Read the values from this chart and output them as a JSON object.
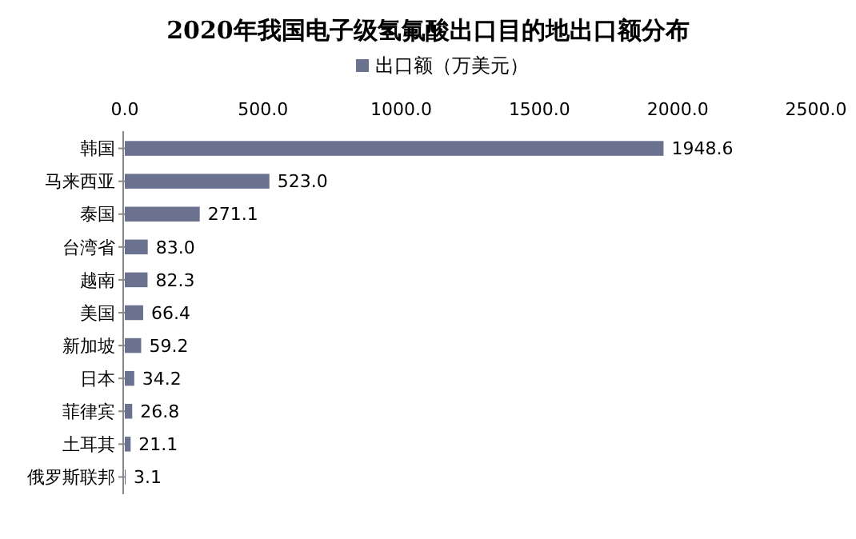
{
  "chart_data": {
    "type": "bar",
    "orientation": "horizontal",
    "title": "2020年我国电子级氢氟酸出口目的地出口额分布",
    "categories": [
      "韩国",
      "马来西亚",
      "泰国",
      "台湾省",
      "越南",
      "美国",
      "新加坡",
      "日本",
      "菲律宾",
      "土耳其",
      "俄罗斯联邦"
    ],
    "series": [
      {
        "name": "出口额（万美元）",
        "color": "#6b7290",
        "values": [
          1948.6,
          523.0,
          271.1,
          83.0,
          82.3,
          66.4,
          59.2,
          34.2,
          26.8,
          21.1,
          3.1
        ]
      }
    ],
    "value_labels": [
      "1948.6",
      "523.0",
      "271.1",
      "83.0",
      "82.3",
      "66.4",
      "59.2",
      "34.2",
      "26.8",
      "21.1",
      "3.1"
    ],
    "xlim": [
      0,
      2500
    ],
    "xticks": [
      {
        "value": 0,
        "label": "0.0"
      },
      {
        "value": 500,
        "label": "500.0"
      },
      {
        "value": 1000,
        "label": "1000.0"
      },
      {
        "value": 1500,
        "label": "1500.0"
      },
      {
        "value": 2000,
        "label": "2000.0"
      },
      {
        "value": 2500,
        "label": "2500.0"
      }
    ],
    "legend": "top",
    "grid": false
  }
}
